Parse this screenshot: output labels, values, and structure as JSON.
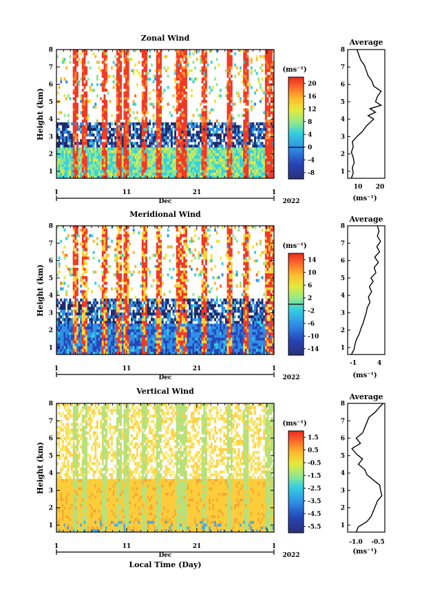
{
  "figure": {
    "xlabel": "Local Time (Day)",
    "month": "Dec",
    "year": "2022"
  },
  "chart_data": [
    {
      "type": "heatmap",
      "title": "Zonal Wind",
      "ylabel": "Height (km)",
      "xlabel": "Dec",
      "x_tick_labels": [
        "1",
        "11",
        "21",
        "1"
      ],
      "y_tick_labels": [
        "1",
        "2",
        "3",
        "4",
        "5",
        "6",
        "7",
        "8"
      ],
      "ylim": [
        0.6,
        8
      ],
      "xlim": [
        1,
        32
      ],
      "colorbar": {
        "unit": "(ms⁻¹)",
        "range": [
          -10,
          22
        ],
        "tick_labels": [
          "20",
          "16",
          "12",
          "8",
          "4",
          "0",
          "-4",
          "-8"
        ],
        "zero_line": 0
      },
      "profile": {
        "title": "Average",
        "xlabel": "(ms⁻¹)",
        "x_tick_labels": [
          "10",
          "20"
        ],
        "xlim": [
          3,
          23
        ],
        "height": [
          0.6,
          0.9,
          1.2,
          1.5,
          1.8,
          2.1,
          2.4,
          2.7,
          3.0,
          3.3,
          3.6,
          3.8,
          4.0,
          4.2,
          4.4,
          4.6,
          4.8,
          5.0,
          5.3,
          5.6,
          5.9,
          6.2,
          6.5,
          6.8,
          7.1,
          7.4,
          7.7,
          8.0
        ],
        "values": [
          5,
          6,
          5.5,
          6.5,
          6,
          5,
          6,
          5.5,
          8,
          11,
          13,
          15,
          17,
          14,
          18,
          15,
          21,
          18,
          19,
          21,
          17,
          16,
          14,
          13,
          12,
          10,
          9,
          8
        ]
      }
    },
    {
      "type": "heatmap",
      "title": "Meridional Wind",
      "ylabel": "Height (km)",
      "xlabel": "Dec",
      "x_tick_labels": [
        "1",
        "11",
        "21",
        "1"
      ],
      "y_tick_labels": [
        "1",
        "2",
        "3",
        "4",
        "5",
        "6",
        "7",
        "8"
      ],
      "ylim": [
        0.6,
        8
      ],
      "xlim": [
        1,
        32
      ],
      "colorbar": {
        "unit": "(ms⁻¹)",
        "range": [
          -16,
          16
        ],
        "tick_labels": [
          "14",
          "10",
          "6",
          "2",
          "-2",
          "-6",
          "-10",
          "-14"
        ],
        "zero_line": 0
      },
      "profile": {
        "title": "Average",
        "xlabel": "(ms⁻¹)",
        "x_tick_labels": [
          "-1",
          "4"
        ],
        "xlim": [
          -2,
          5
        ],
        "height": [
          0.6,
          0.9,
          1.2,
          1.5,
          1.8,
          2.1,
          2.4,
          2.7,
          3.0,
          3.3,
          3.6,
          3.9,
          4.2,
          4.5,
          4.8,
          5.0,
          5.3,
          5.6,
          5.9,
          6.2,
          6.5,
          6.8,
          7.1,
          7.4,
          7.7,
          8.0
        ],
        "values": [
          -1.3,
          -0.8,
          -0.6,
          -0.3,
          0.2,
          0.5,
          0.9,
          1.2,
          1.5,
          1.7,
          2.2,
          1.9,
          2.5,
          2.1,
          2.8,
          2.4,
          3.3,
          3.0,
          3.8,
          3.1,
          4.0,
          3.5,
          4.2,
          3.6,
          3.9,
          3.6
        ]
      }
    },
    {
      "type": "heatmap",
      "title": "Vertical Wind",
      "ylabel": "Height (km)",
      "xlabel": "Dec",
      "x_tick_labels": [
        "1",
        "11",
        "21",
        "1"
      ],
      "y_tick_labels": [
        "1",
        "2",
        "3",
        "4",
        "5",
        "6",
        "7",
        "8"
      ],
      "ylim": [
        0.6,
        8
      ],
      "xlim": [
        1,
        32
      ],
      "colorbar": {
        "unit": "(ms⁻¹)",
        "range": [
          -6,
          2
        ],
        "tick_labels": [
          "1.5",
          "0.5",
          "-0.5",
          "-1.5",
          "-2.5",
          "-3.5",
          "-4.5",
          "-5.5"
        ]
      },
      "profile": {
        "title": "Average",
        "xlabel": "(ms⁻¹)",
        "x_tick_labels": [
          "-1.0",
          "-0.5"
        ],
        "xlim": [
          -1.15,
          -0.28
        ],
        "height": [
          0.6,
          0.9,
          1.2,
          1.5,
          1.8,
          2.1,
          2.4,
          2.7,
          3.0,
          3.3,
          3.6,
          3.9,
          4.2,
          4.5,
          4.8,
          5.1,
          5.4,
          5.7,
          6.0,
          6.3,
          6.6,
          6.9,
          7.2,
          7.5,
          7.8,
          8.0
        ],
        "values": [
          -0.95,
          -0.9,
          -0.7,
          -0.6,
          -0.55,
          -0.5,
          -0.45,
          -0.35,
          -0.38,
          -0.4,
          -0.55,
          -0.7,
          -0.75,
          -0.9,
          -0.8,
          -0.95,
          -1.05,
          -0.85,
          -0.95,
          -0.8,
          -0.75,
          -0.7,
          -0.65,
          -0.5,
          -0.4,
          -0.32
        ]
      }
    }
  ]
}
